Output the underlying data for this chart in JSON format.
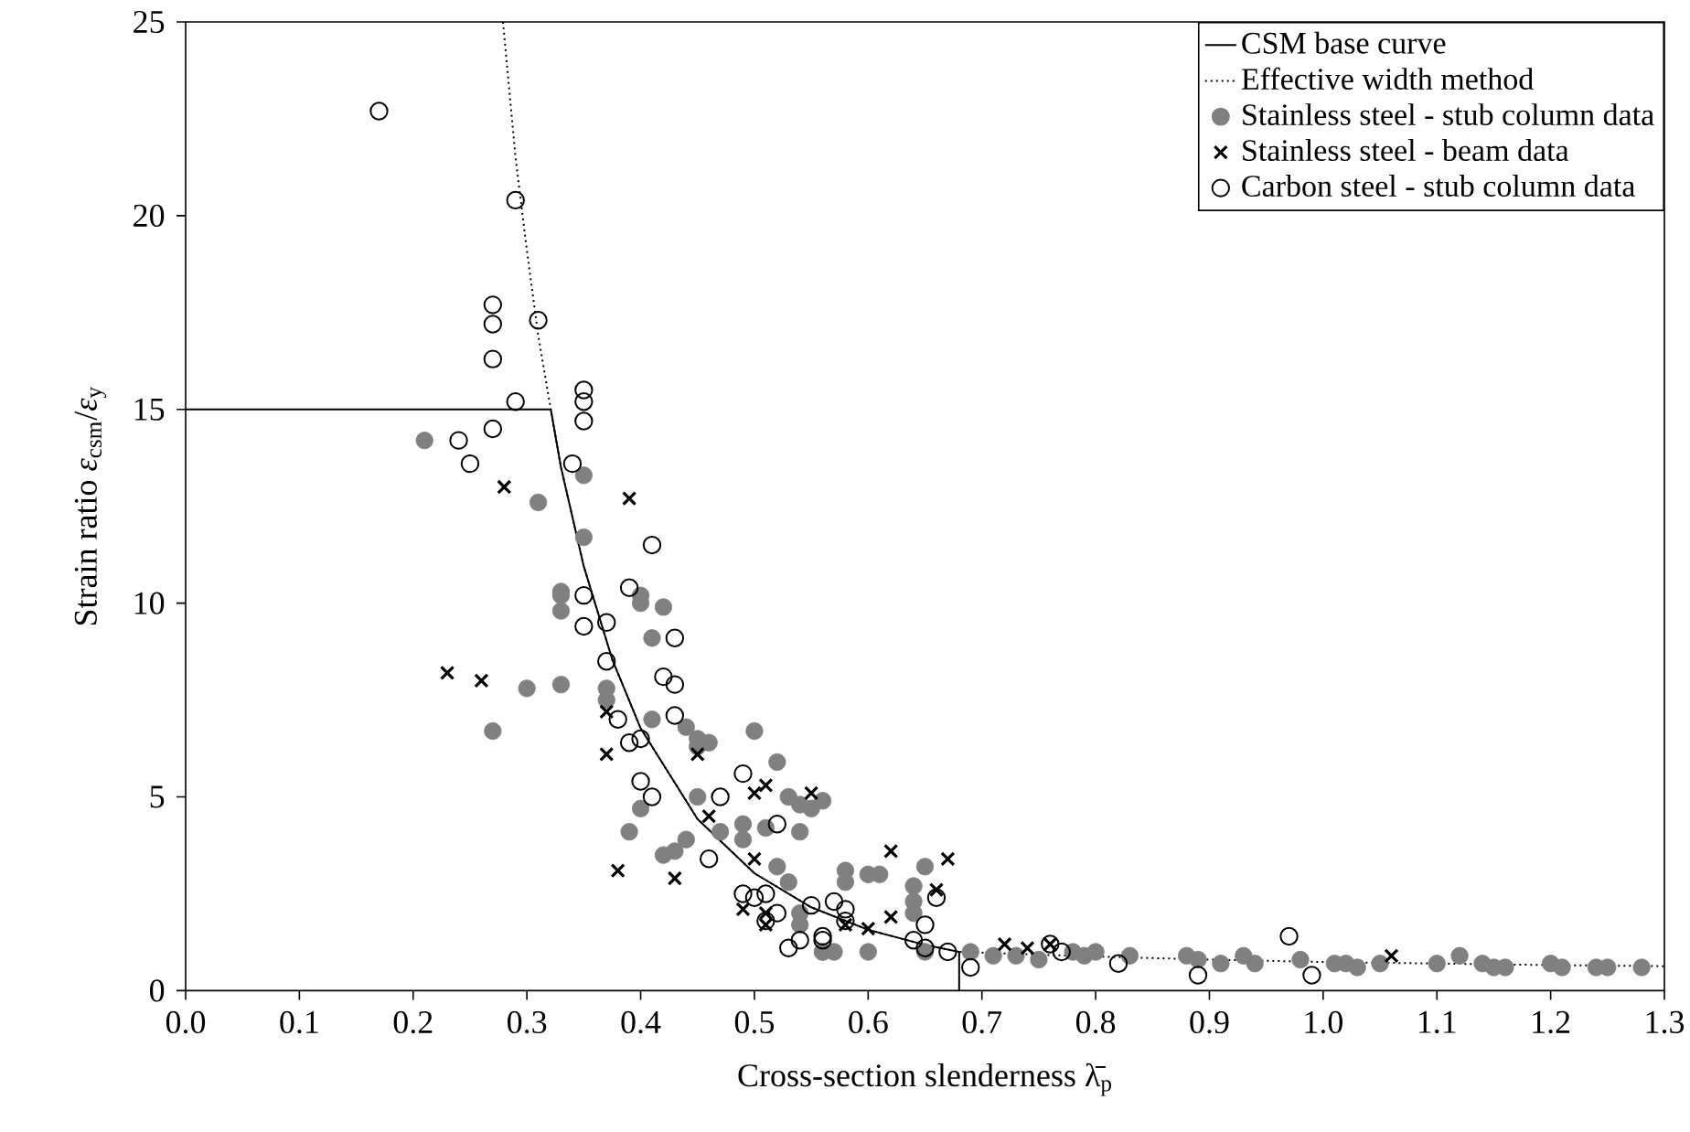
{
  "chart_data": {
    "type": "scatter",
    "xlabel": "Cross-section slenderness λ̄$_{p}$",
    "ylabel": "Strain ratio *ε*$_{csm}$/*ε*$_{y}$",
    "xlim": [
      0,
      1.3
    ],
    "ylim": [
      0,
      25
    ],
    "xticks": [
      {
        "value": 0,
        "label": "0.0"
      },
      {
        "value": 0.1,
        "label": "0.1"
      },
      {
        "value": 0.2,
        "label": "0.2"
      },
      {
        "value": 0.3,
        "label": "0.3"
      },
      {
        "value": 0.4,
        "label": "0.4"
      },
      {
        "value": 0.5,
        "label": "0.5"
      },
      {
        "value": 0.6,
        "label": "0.6"
      },
      {
        "value": 0.7,
        "label": "0.7"
      },
      {
        "value": 0.8,
        "label": "0.8"
      },
      {
        "value": 0.9,
        "label": "0.9"
      },
      {
        "value": 1,
        "label": "1.0"
      },
      {
        "value": 1.1,
        "label": "1.1"
      },
      {
        "value": 1.2,
        "label": "1.2"
      },
      {
        "value": 1.3,
        "label": "1.3"
      }
    ],
    "yticks": [
      0,
      5,
      10,
      15,
      20,
      25
    ],
    "grid": false,
    "legend": "top right",
    "series": [
      {
        "name": "CSM base curve",
        "type": "line",
        "line_style": "solid",
        "marker": "none",
        "color": "#000000",
        "x": [
          0,
          0.321,
          0.33,
          0.35,
          0.375,
          0.4,
          0.45,
          0.5,
          0.55,
          0.6,
          0.65,
          0.68,
          0.68
        ],
        "values": [
          15,
          15,
          13.5,
          10.95,
          8.55,
          6.77,
          4.43,
          3.03,
          2.15,
          1.57,
          1.18,
          1.0,
          0
        ]
      },
      {
        "name": "Effective width method",
        "type": "line",
        "line_style": "dotted",
        "marker": "none",
        "color": "#000000",
        "x": [
          0.279,
          0.29,
          0.3,
          0.31,
          0.321,
          0.33,
          0.35,
          0.375,
          0.4,
          0.45,
          0.5,
          0.55,
          0.6,
          0.65,
          0.68,
          0.8,
          0.9,
          1.0,
          1.1,
          1.2,
          1.3
        ],
        "values": [
          25,
          21.5,
          19.1,
          16.9,
          15,
          13.5,
          10.95,
          8.55,
          6.77,
          4.43,
          3.03,
          2.15,
          1.57,
          1.18,
          1.0,
          0.88,
          0.8,
          0.74,
          0.7,
          0.66,
          0.63
        ]
      },
      {
        "name": "Stainless steel - stub column data",
        "marker": "circle",
        "color": "#808080",
        "x": [
          0.21,
          0.35,
          0.31,
          0.35,
          0.33,
          0.33,
          0.33,
          0.4,
          0.4,
          0.42,
          0.41,
          0.3,
          0.33,
          0.37,
          0.37,
          0.27,
          0.41,
          0.44,
          0.45,
          0.46,
          0.45,
          0.5,
          0.52,
          0.45,
          0.4,
          0.39,
          0.49,
          0.51,
          0.54,
          0.53,
          0.54,
          0.47,
          0.44,
          0.43,
          0.42,
          0.49,
          0.53,
          0.52,
          0.56,
          0.54,
          0.56,
          0.55,
          0.58,
          0.6,
          0.61,
          0.58,
          0.64,
          0.64,
          0.64,
          0.65,
          0.54,
          0.56,
          0.57,
          0.6,
          0.65,
          0.69,
          0.71,
          0.73,
          0.75,
          0.78,
          0.79,
          0.8,
          0.83,
          0.88,
          0.89,
          0.91,
          0.93,
          0.94,
          0.98,
          1.01,
          1.02,
          1.03,
          1.05,
          1.1,
          1.12,
          1.14,
          1.15,
          1.16,
          1.2,
          1.21,
          1.24,
          1.25,
          1.28
        ],
        "values": [
          14.2,
          13.3,
          12.6,
          11.7,
          10.3,
          9.8,
          10.2,
          10.2,
          10.0,
          9.9,
          9.1,
          7.8,
          7.9,
          7.8,
          7.5,
          6.7,
          7.0,
          6.8,
          6.5,
          6.4,
          6.3,
          6.7,
          5.9,
          5.0,
          4.7,
          4.1,
          4.3,
          4.2,
          4.1,
          5.0,
          4.8,
          4.1,
          3.9,
          3.6,
          3.5,
          3.9,
          2.8,
          3.2,
          1.0,
          1.7,
          4.9,
          4.7,
          3.1,
          3.0,
          3.0,
          2.8,
          2.7,
          2.3,
          2.0,
          3.2,
          2.0,
          1.0,
          1.0,
          1.0,
          1.0,
          1.0,
          0.9,
          0.9,
          0.8,
          1.0,
          0.9,
          1.0,
          0.9,
          0.9,
          0.8,
          0.7,
          0.9,
          0.7,
          0.8,
          0.7,
          0.7,
          0.6,
          0.7,
          0.7,
          0.9,
          0.7,
          0.6,
          0.6,
          0.7,
          0.6,
          0.6,
          0.6,
          0.6
        ]
      },
      {
        "name": "Stainless steel - beam data",
        "marker": "cross",
        "color": "#000000",
        "x": [
          0.28,
          0.39,
          0.23,
          0.26,
          0.37,
          0.37,
          0.45,
          0.38,
          0.43,
          0.46,
          0.5,
          0.51,
          0.55,
          0.5,
          0.49,
          0.51,
          0.51,
          0.62,
          0.67,
          0.66,
          0.62,
          0.58,
          0.6,
          0.72,
          0.74,
          0.76,
          1.06
        ],
        "values": [
          13.0,
          12.7,
          8.2,
          8.0,
          7.2,
          6.1,
          6.1,
          3.1,
          2.9,
          4.5,
          5.1,
          5.3,
          5.1,
          3.4,
          2.1,
          1.7,
          2.0,
          3.6,
          3.4,
          2.6,
          1.9,
          1.7,
          1.6,
          1.2,
          1.1,
          1.2,
          0.9
        ]
      },
      {
        "name": "Carbon steel - stub column data",
        "marker": "circle",
        "color": "#000000",
        "x": [
          0.17,
          0.29,
          0.27,
          0.27,
          0.27,
          0.31,
          0.35,
          0.35,
          0.35,
          0.29,
          0.27,
          0.24,
          0.25,
          0.34,
          0.41,
          0.39,
          0.35,
          0.35,
          0.37,
          0.43,
          0.37,
          0.42,
          0.43,
          0.43,
          0.38,
          0.4,
          0.39,
          0.4,
          0.41,
          0.49,
          0.47,
          0.52,
          0.46,
          0.49,
          0.5,
          0.51,
          0.52,
          0.51,
          0.53,
          0.54,
          0.55,
          0.57,
          0.58,
          0.58,
          0.56,
          0.56,
          0.66,
          0.65,
          0.64,
          0.65,
          0.67,
          0.69,
          0.76,
          0.77,
          0.82,
          0.89,
          0.97,
          0.99
        ],
        "values": [
          22.7,
          20.4,
          17.7,
          17.2,
          16.3,
          17.3,
          15.5,
          15.2,
          14.7,
          15.2,
          14.5,
          14.2,
          13.6,
          13.6,
          11.5,
          10.4,
          10.2,
          9.4,
          9.5,
          9.1,
          8.5,
          8.1,
          7.9,
          7.1,
          7.0,
          6.5,
          6.4,
          5.4,
          5.0,
          5.6,
          5.0,
          4.3,
          3.4,
          2.5,
          2.4,
          2.5,
          2.0,
          1.8,
          1.1,
          1.3,
          2.2,
          2.3,
          2.1,
          1.8,
          1.4,
          1.3,
          2.4,
          1.7,
          1.3,
          1.1,
          1.0,
          0.6,
          1.2,
          1.0,
          0.7,
          0.4,
          1.4,
          0.4
        ]
      }
    ]
  }
}
